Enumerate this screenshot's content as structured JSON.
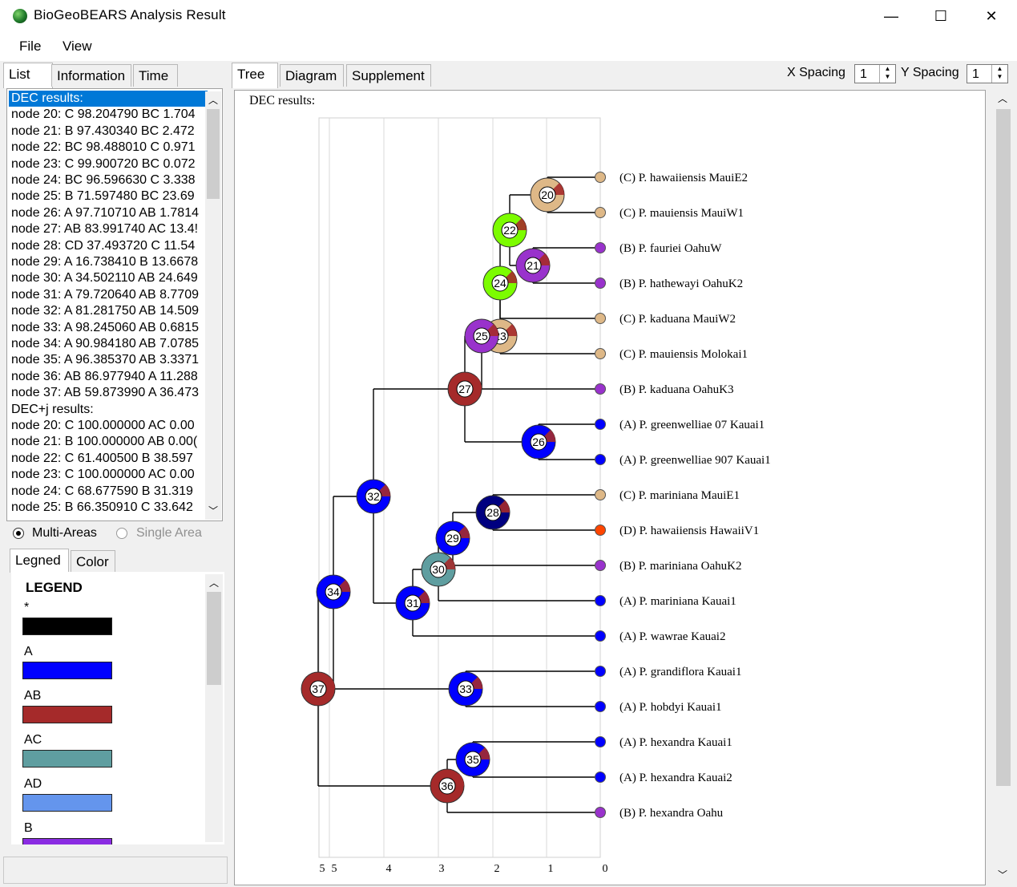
{
  "window": {
    "title": "BioGeoBEARS Analysis Result",
    "minimize": "—",
    "maximize": "☐",
    "close": "✕"
  },
  "menu": {
    "file": "File",
    "view": "View"
  },
  "left_tabs": [
    "List",
    "Information",
    "Time"
  ],
  "right_tabs": [
    "Tree",
    "Diagram",
    "Supplement"
  ],
  "list": {
    "items": [
      "DEC results:",
      "node 20: C 98.204790 BC 1.704",
      "node 21: B 97.430340 BC 2.472",
      "node 22: BC 98.488010 C 0.971",
      "node 23: C 99.900720 BC 0.072",
      "node 24: BC 96.596630 C 3.338",
      "node 25: B 71.597480 BC 23.69",
      "node 26: A 97.710710 AB 1.7814",
      "node 27: AB 83.991740 AC 13.4!",
      "node 28: CD 37.493720 C 11.54",
      "node 29: A 16.738410 B 13.6678",
      "node 30: A 34.502110 AB 24.649",
      "node 31: A 79.720640 AB 8.7709",
      "node 32: A 81.281750 AB 14.509",
      "node 33: A 98.245060 AB 0.6815",
      "node 34: A 90.984180 AB 7.0785",
      "node 35: A 96.385370 AB 3.3371",
      "node 36: AB 86.977940 A 11.288",
      "node 37: AB 59.873990 A 36.473",
      "DEC+j results:",
      "node 20: C 100.000000 AC 0.00",
      "node 21: B 100.000000 AB 0.00(",
      "node 22: C 61.400500 B 38.597",
      "node 23: C 100.000000 AC 0.00",
      "node 24: C 68.677590 B 31.319",
      "node 25: B 66.350910 C 33.642"
    ]
  },
  "options": {
    "multi": "Multi-Areas",
    "single": "Single Area"
  },
  "legend_tabs": [
    "Legned",
    "Color"
  ],
  "legend": {
    "title": "LEGEND",
    "items": [
      {
        "label": "*",
        "color": "#000000"
      },
      {
        "label": "A",
        "color": "#0000ff"
      },
      {
        "label": "AB",
        "color": "#a52a2a"
      },
      {
        "label": "AC",
        "color": "#5f9ea0"
      },
      {
        "label": "AD",
        "color": "#6495ed"
      },
      {
        "label": "B",
        "color": "#8a2be2"
      }
    ]
  },
  "spacing": {
    "x_label": "X Spacing",
    "x_value": "1",
    "y_label": "Y Spacing",
    "y_value": "1"
  },
  "tree": {
    "header": "DEC results:",
    "axis_ticks": [
      "5",
      "5",
      "4",
      "3",
      "2",
      "1",
      "0"
    ],
    "tips": [
      {
        "label": "(C) P. hawaiiensis MauiE2",
        "color": "#deb887"
      },
      {
        "label": "(C) P. mauiensis MauiW1",
        "color": "#deb887"
      },
      {
        "label": "(B) P. fauriei OahuW",
        "color": "#9932cc"
      },
      {
        "label": "(B) P. hathewayi OahuK2",
        "color": "#9932cc"
      },
      {
        "label": "(C) P. kaduana MauiW2",
        "color": "#deb887"
      },
      {
        "label": "(C) P. mauiensis Molokai1",
        "color": "#deb887"
      },
      {
        "label": "(B) P. kaduana OahuK3",
        "color": "#9932cc"
      },
      {
        "label": "(A) P. greenwelliae 07 Kauai1",
        "color": "#0000ff"
      },
      {
        "label": "(A) P. greenwelliae 907 Kauai1",
        "color": "#0000ff"
      },
      {
        "label": "(C) P. mariniana MauiE1",
        "color": "#deb887"
      },
      {
        "label": "(D) P. hawaiiensis HawaiiV1",
        "color": "#ff4500"
      },
      {
        "label": "(B) P. mariniana OahuK2",
        "color": "#9932cc"
      },
      {
        "label": "(A) P. mariniana Kauai1",
        "color": "#0000ff"
      },
      {
        "label": "(A) P. wawrae Kauai2",
        "color": "#0000ff"
      },
      {
        "label": "(A) P. grandiflora Kauai1",
        "color": "#0000ff"
      },
      {
        "label": "(A) P. hobdyi Kauai1",
        "color": "#0000ff"
      },
      {
        "label": "(A) P. hexandra Kauai1",
        "color": "#0000ff"
      },
      {
        "label": "(A) P. hexandra Kauai2",
        "color": "#0000ff"
      },
      {
        "label": "(B) P. hexandra Oahu",
        "color": "#9932cc"
      }
    ],
    "nodes": [
      {
        "id": "20",
        "color": "#deb887"
      },
      {
        "id": "21",
        "color": "#9932cc"
      },
      {
        "id": "22",
        "color": "#7cfc00"
      },
      {
        "id": "23",
        "color": "#deb887"
      },
      {
        "id": "24",
        "color": "#7cfc00"
      },
      {
        "id": "25",
        "color": "#9932cc"
      },
      {
        "id": "26",
        "color": "#0000ff"
      },
      {
        "id": "27",
        "color": "#a52a2a"
      },
      {
        "id": "28",
        "color": "#000080"
      },
      {
        "id": "29",
        "color": "#0000ff"
      },
      {
        "id": "30",
        "color": "#5f9ea0"
      },
      {
        "id": "31",
        "color": "#0000ff"
      },
      {
        "id": "32",
        "color": "#0000ff"
      },
      {
        "id": "33",
        "color": "#0000ff"
      },
      {
        "id": "34",
        "color": "#0000ff"
      },
      {
        "id": "35",
        "color": "#0000ff"
      },
      {
        "id": "36",
        "color": "#a52a2a"
      },
      {
        "id": "37",
        "color": "#a52a2a"
      }
    ]
  }
}
